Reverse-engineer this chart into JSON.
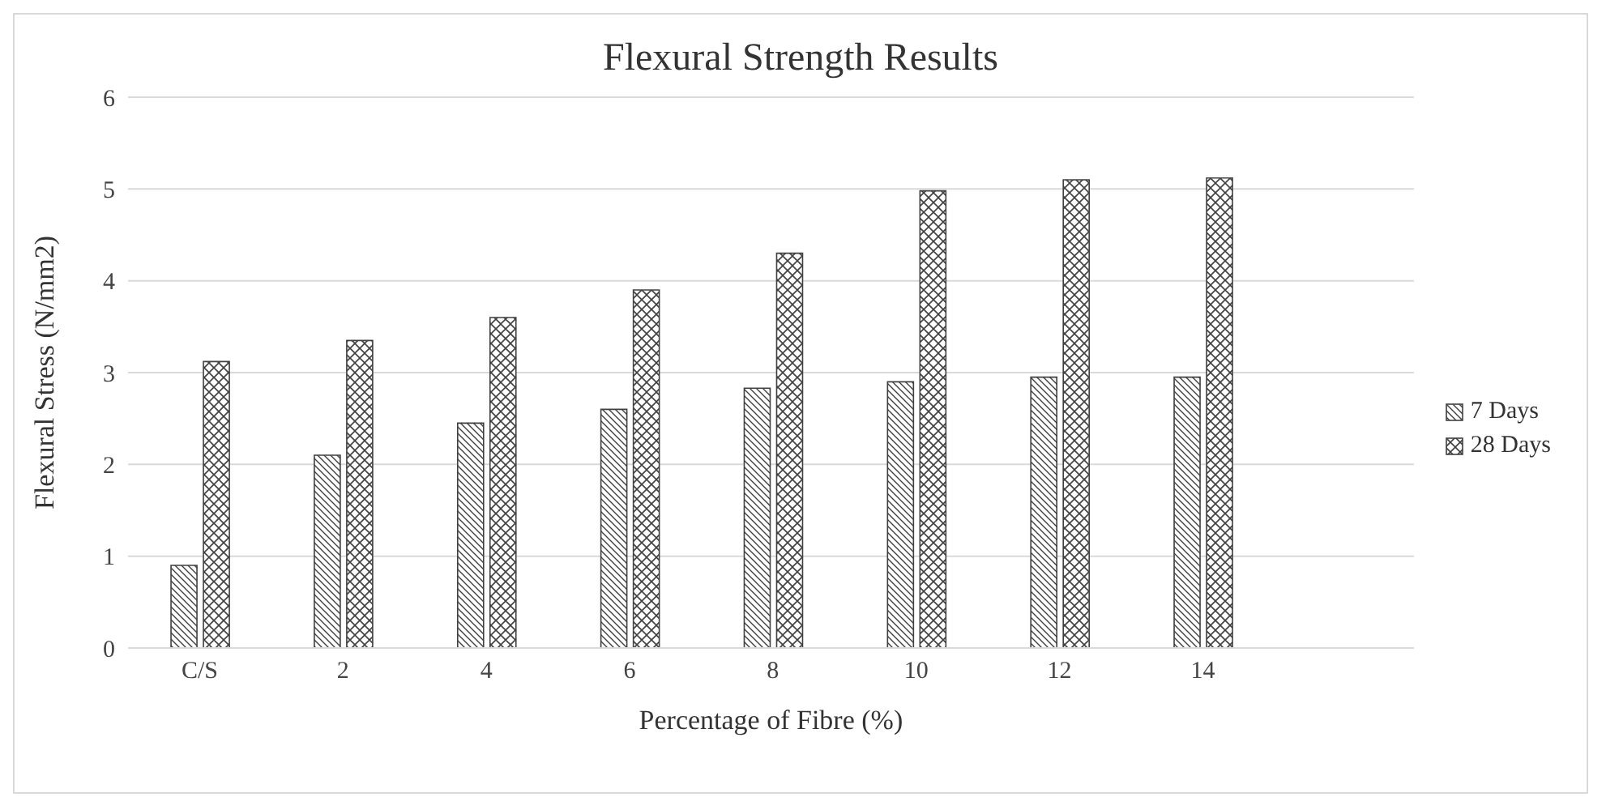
{
  "chart_data": {
    "type": "bar",
    "title": "Flexural  Strength Results",
    "xlabel": "Percentage of Fibre (%)",
    "ylabel": "Flexural  Stress (N/mm2)",
    "categories": [
      "C/S",
      "2",
      "4",
      "6",
      "8",
      "10",
      "12",
      "14"
    ],
    "series": [
      {
        "name": "7 Days",
        "color": "#404040",
        "values": [
          0.9,
          2.1,
          2.45,
          2.6,
          2.83,
          2.9,
          2.95,
          2.95
        ]
      },
      {
        "name": "28 Days",
        "color": "#404040",
        "values": [
          3.12,
          3.35,
          3.6,
          3.9,
          4.3,
          4.98,
          5.1,
          5.12
        ]
      }
    ],
    "ylim": [
      0,
      6
    ],
    "yticks": [
      0,
      1,
      2,
      3,
      4,
      5,
      6
    ],
    "grid": "y",
    "legend": "right"
  }
}
